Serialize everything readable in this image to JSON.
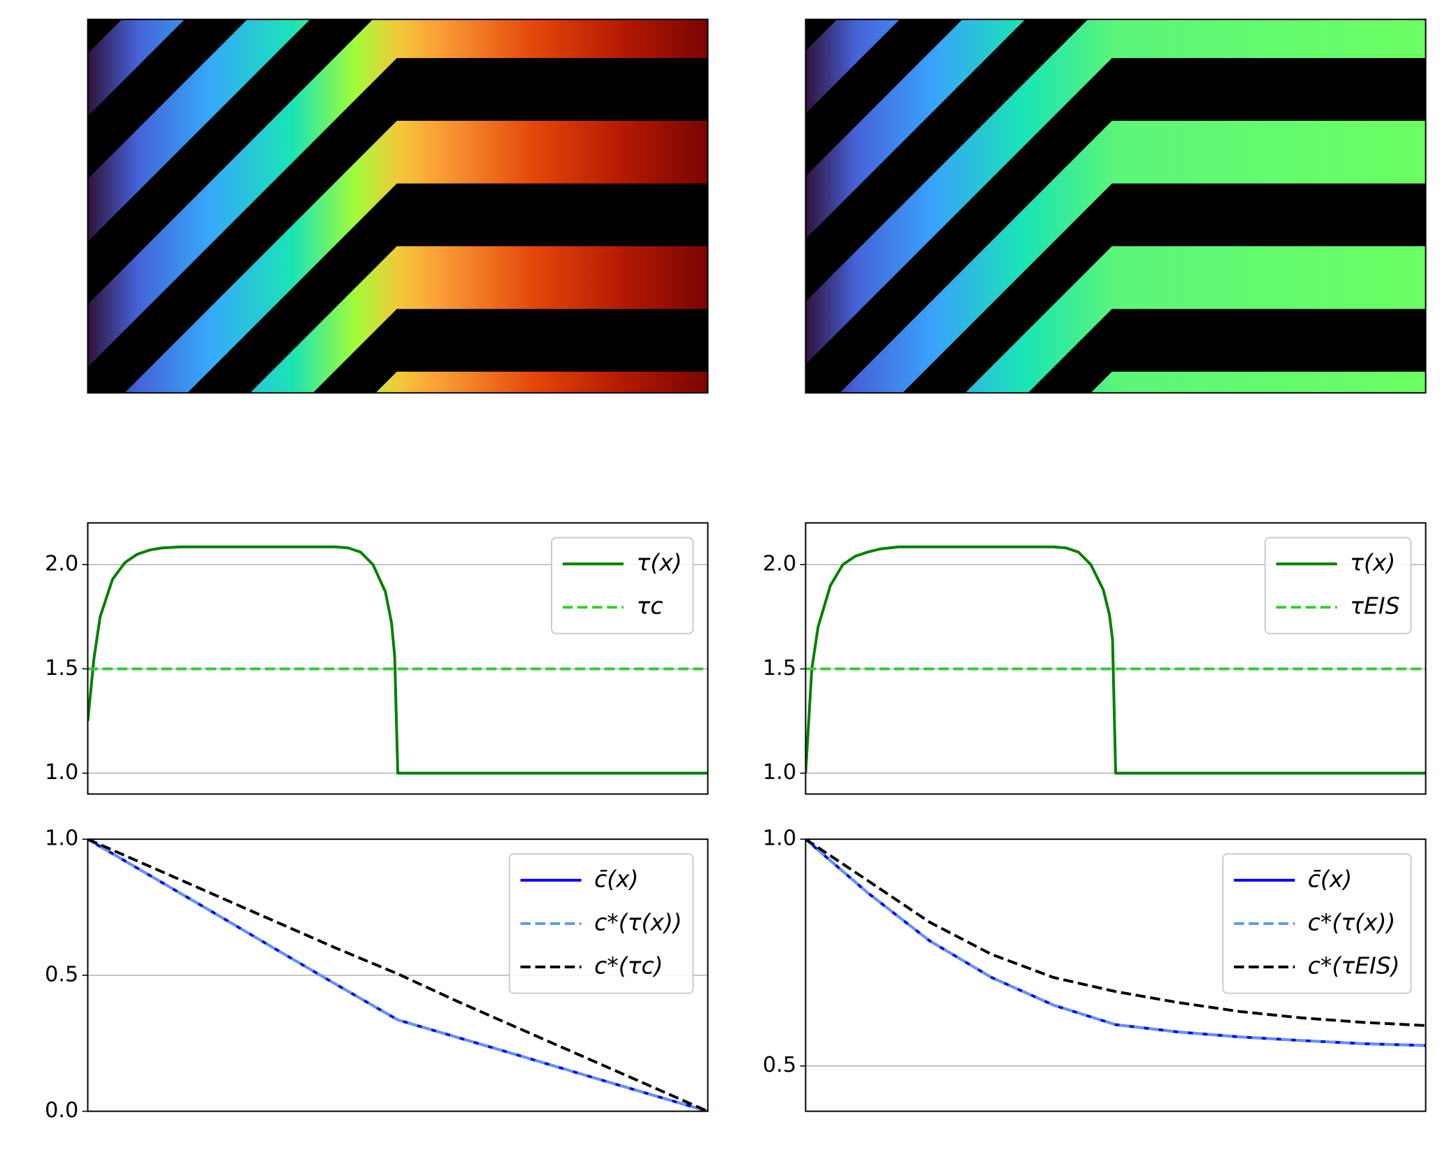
{
  "chart_data": [
    {
      "type": "line",
      "xlim": [
        0,
        1
      ],
      "ylim": [
        0.9,
        2.2
      ],
      "yticks": [
        {
          "value": 1,
          "label": "1.0"
        },
        1.5,
        {
          "value": 2,
          "label": "2.0"
        }
      ],
      "grid": "y",
      "legend": "upper right",
      "x": [
        0,
        0.01,
        0.02,
        0.04,
        0.06,
        0.08,
        0.1,
        0.12,
        0.15,
        0.2,
        0.3,
        0.4,
        0.42,
        0.44,
        0.46,
        0.48,
        0.49,
        0.495,
        0.5,
        1
      ],
      "series": [
        {
          "name": "τ(x)",
          "color": "#008000",
          "linestyle": "solid",
          "values": [
            1.25,
            1.55,
            1.75,
            1.93,
            2.01,
            2.05,
            2.07,
            2.08,
            2.085,
            2.085,
            2.085,
            2.085,
            2.08,
            2.06,
            2.0,
            1.87,
            1.72,
            1.56,
            1.0,
            1.0
          ]
        },
        {
          "name": "τc",
          "color": "#32cd32",
          "linestyle": "dashed",
          "values": [
            1.5,
            1.5,
            1.5,
            1.5,
            1.5,
            1.5,
            1.5,
            1.5,
            1.5,
            1.5,
            1.5,
            1.5,
            1.5,
            1.5,
            1.5,
            1.5,
            1.5,
            1.5,
            1.5,
            1.5
          ]
        }
      ]
    },
    {
      "type": "line",
      "xlim": [
        0,
        1
      ],
      "ylim": [
        0.9,
        2.2
      ],
      "yticks": [
        {
          "value": 1,
          "label": "1.0"
        },
        1.5,
        {
          "value": 2,
          "label": "2.0"
        }
      ],
      "grid": "y",
      "legend": "upper right",
      "x": [
        0,
        0.01,
        0.02,
        0.04,
        0.06,
        0.08,
        0.1,
        0.12,
        0.15,
        0.2,
        0.3,
        0.4,
        0.42,
        0.44,
        0.46,
        0.48,
        0.49,
        0.495,
        0.5,
        1
      ],
      "series": [
        {
          "name": "τ(x)",
          "color": "#008000",
          "linestyle": "solid",
          "values": [
            1.0,
            1.5,
            1.7,
            1.9,
            2.0,
            2.04,
            2.06,
            2.075,
            2.085,
            2.085,
            2.085,
            2.085,
            2.08,
            2.06,
            2.0,
            1.88,
            1.76,
            1.64,
            1.0,
            1.0
          ]
        },
        {
          "name": "τEIS",
          "color": "#32cd32",
          "linestyle": "dashed",
          "values": [
            1.5,
            1.5,
            1.5,
            1.5,
            1.5,
            1.5,
            1.5,
            1.5,
            1.5,
            1.5,
            1.5,
            1.5,
            1.5,
            1.5,
            1.5,
            1.5,
            1.5,
            1.5,
            1.5,
            1.5
          ]
        }
      ]
    },
    {
      "type": "line",
      "xlim": [
        0,
        1
      ],
      "ylim": [
        0,
        1
      ],
      "yticks": [
        {
          "value": 0,
          "label": "0.0"
        },
        0.5,
        {
          "value": 1,
          "label": "1.0"
        }
      ],
      "grid": "y",
      "legend": "upper right",
      "x": [
        0,
        0.1,
        0.2,
        0.3,
        0.4,
        0.5,
        0.6,
        0.7,
        0.8,
        0.9,
        1
      ],
      "series": [
        {
          "name": "c̄(x)",
          "color": "#0000ff",
          "linestyle": "solid",
          "values": [
            1,
            0.867,
            0.734,
            0.6,
            0.467,
            0.336,
            0.269,
            0.202,
            0.134,
            0.067,
            0
          ]
        },
        {
          "name": "c*(τ(x))",
          "color": "#6495ed",
          "linestyle": "dashed",
          "values": [
            1,
            0.867,
            0.734,
            0.6,
            0.467,
            0.336,
            0.269,
            0.202,
            0.134,
            0.067,
            0
          ]
        },
        {
          "name": "c*(τc)",
          "color": "#000000",
          "linestyle": "dashed",
          "values": [
            1,
            0.9,
            0.8,
            0.7,
            0.6,
            0.505,
            0.4,
            0.3,
            0.2,
            0.1,
            0
          ]
        }
      ]
    },
    {
      "type": "line",
      "xlim": [
        0,
        1
      ],
      "ylim": [
        0.4,
        1
      ],
      "yticks": [
        0.5,
        {
          "value": 1,
          "label": "1.0"
        }
      ],
      "grid": "y",
      "legend": "upper right",
      "x": [
        0,
        0.1,
        0.2,
        0.3,
        0.4,
        0.5,
        0.6,
        0.7,
        0.8,
        0.9,
        1
      ],
      "series": [
        {
          "name": "c̄(x)",
          "color": "#0000ff",
          "linestyle": "solid",
          "values": [
            1,
            0.882,
            0.776,
            0.695,
            0.634,
            0.591,
            0.575,
            0.564,
            0.556,
            0.549,
            0.545
          ]
        },
        {
          "name": "c*(τ(x))",
          "color": "#6495ed",
          "linestyle": "dashed",
          "values": [
            1,
            0.882,
            0.776,
            0.695,
            0.634,
            0.591,
            0.575,
            0.564,
            0.556,
            0.549,
            0.545
          ]
        },
        {
          "name": "c*(τEIS)",
          "color": "#000000",
          "linestyle": "dashed",
          "values": [
            1,
            0.909,
            0.817,
            0.746,
            0.695,
            0.664,
            0.64,
            0.62,
            0.606,
            0.596,
            0.589
          ]
        }
      ]
    }
  ]
}
